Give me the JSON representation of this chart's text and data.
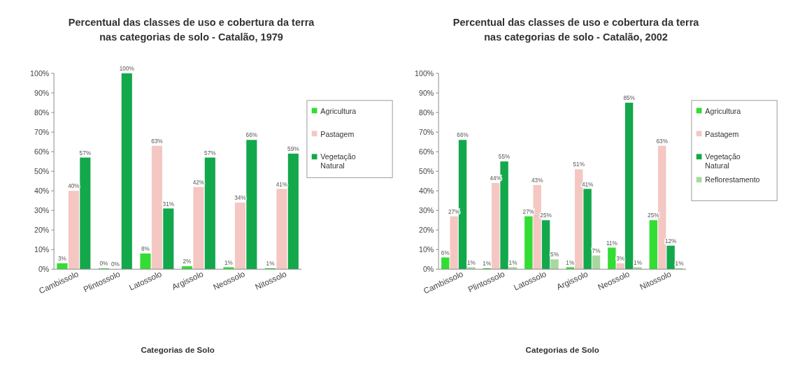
{
  "chart_data": [
    {
      "type": "bar",
      "title": "Percentual das classes de uso e cobertura da terra nas categorias de solo - Catalão, 1979",
      "xlabel": "Categorias de Solo",
      "categories": [
        "Cambissolo",
        "Plintossolo",
        "Latossolo",
        "Argissolo",
        "Neossolo",
        "Nitossolo"
      ],
      "series": [
        {
          "name": "Agricultura",
          "color": "#33dd33",
          "values": [
            3,
            0.4,
            8,
            1.5,
            1,
            0.5
          ],
          "value_labels": [
            "3%",
            "0%",
            "8%",
            "2%",
            "1%",
            "1%"
          ]
        },
        {
          "name": "Pastagem",
          "color": "#f4c7c3",
          "values": [
            40,
            0,
            63,
            42,
            34,
            41
          ],
          "value_labels": [
            "40%",
            "0%",
            "63%",
            "42%",
            "34%",
            "41%"
          ]
        },
        {
          "name": "Vegetação Natural",
          "color": "#13a84c",
          "values": [
            57,
            100,
            31,
            57,
            66,
            59
          ],
          "value_labels": [
            "57%",
            "100%",
            "31%",
            "57%",
            "66%",
            "59%"
          ]
        }
      ],
      "ylim": [
        0,
        100
      ],
      "yticks": [
        {
          "value": 0,
          "label": "0%"
        },
        {
          "value": 10,
          "label": "10%"
        },
        {
          "value": 20,
          "label": "20%"
        },
        {
          "value": 30,
          "label": "30%"
        },
        {
          "value": 40,
          "label": "40%"
        },
        {
          "value": 50,
          "label": "50%"
        },
        {
          "value": 60,
          "label": "60%"
        },
        {
          "value": 70,
          "label": "70%"
        },
        {
          "value": 80,
          "label": "80%"
        },
        {
          "value": 90,
          "label": "90%"
        },
        {
          "value": 100,
          "label": "100%"
        }
      ],
      "legend": "right",
      "grid": false
    },
    {
      "type": "bar",
      "title": "Percentual das classes de uso e cobertura da terra nas categorias de solo - Catalão, 2002",
      "xlabel": "Categorias de Solo",
      "categories": [
        "Cambissolo",
        "Plintossolo",
        "Latossolo",
        "Argissolo",
        "Neossolo",
        "Nitossolo"
      ],
      "series": [
        {
          "name": "Agricultura",
          "color": "#33dd33",
          "values": [
            6,
            0.5,
            27,
            1,
            11,
            25
          ],
          "value_labels": [
            "6%",
            "1%",
            "27%",
            "1%",
            "11%",
            "25%"
          ]
        },
        {
          "name": "Pastagem",
          "color": "#f4c7c3",
          "values": [
            27,
            44,
            43,
            51,
            3,
            63
          ],
          "value_labels": [
            "27%",
            "44%",
            "43%",
            "51%",
            "3%",
            "63%"
          ]
        },
        {
          "name": "Vegetação Natural",
          "color": "#13a84c",
          "values": [
            66,
            55,
            25,
            41,
            85,
            12
          ],
          "value_labels": [
            "66%",
            "55%",
            "25%",
            "41%",
            "85%",
            "12%"
          ]
        },
        {
          "name": "Reflorestamento",
          "color": "#a8d8a0",
          "values": [
            1,
            1,
            5,
            7,
            1,
            0.5
          ],
          "value_labels": [
            "1%",
            "1%",
            "5%",
            "7%",
            "1%",
            "1%"
          ]
        }
      ],
      "ylim": [
        0,
        100
      ],
      "yticks": [
        {
          "value": 0,
          "label": "0%"
        },
        {
          "value": 10,
          "label": "10%"
        },
        {
          "value": 20,
          "label": "20%"
        },
        {
          "value": 30,
          "label": "30%"
        },
        {
          "value": 40,
          "label": "40%"
        },
        {
          "value": 50,
          "label": "50%"
        },
        {
          "value": 60,
          "label": "60%"
        },
        {
          "value": 70,
          "label": "70%"
        },
        {
          "value": 80,
          "label": "80%"
        },
        {
          "value": 90,
          "label": "90%"
        },
        {
          "value": 100,
          "label": "100%"
        }
      ],
      "legend": "right",
      "grid": false
    }
  ]
}
